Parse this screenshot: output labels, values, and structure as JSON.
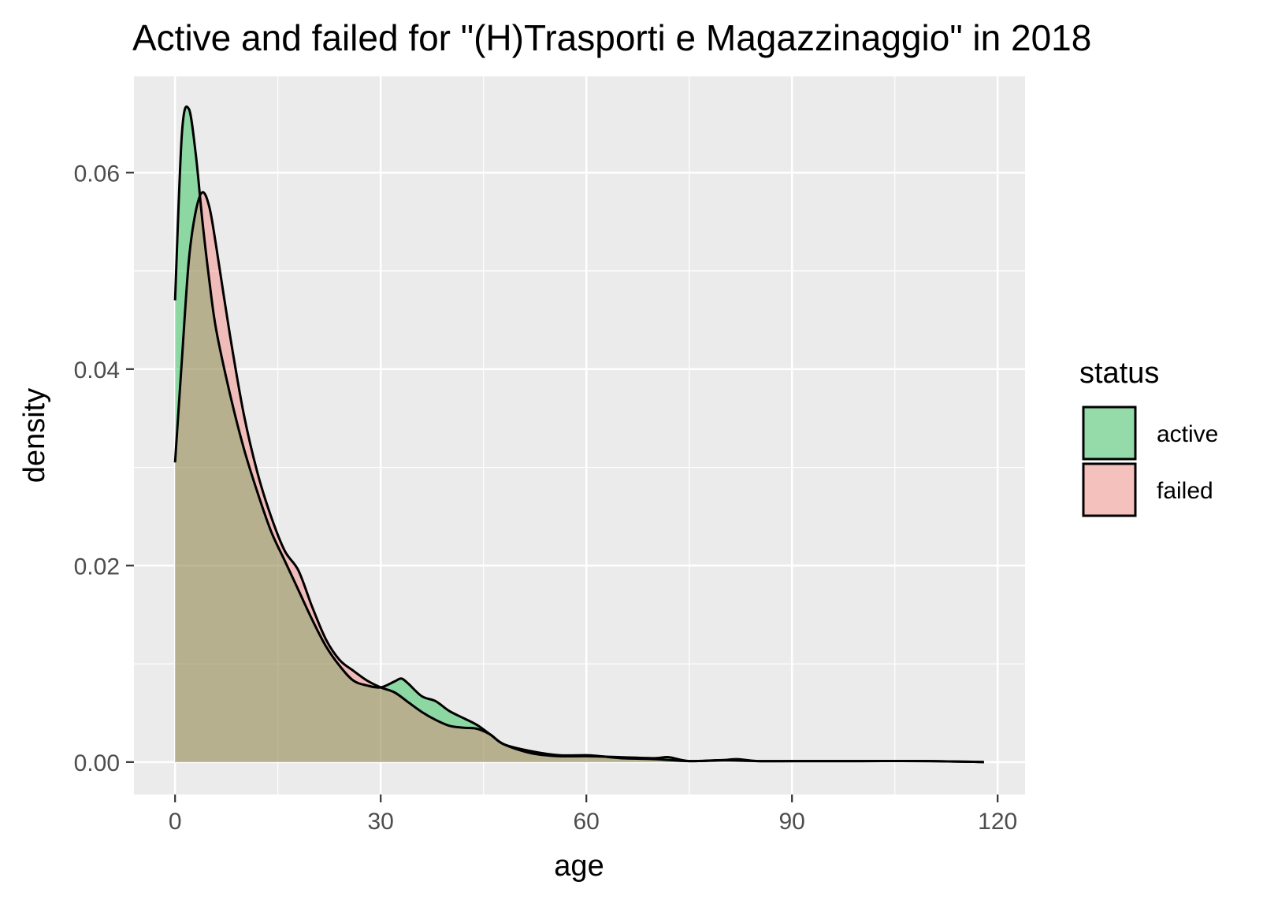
{
  "chart_data": {
    "type": "area",
    "title": "Active and failed for \"(H)Trasporti e Magazzinaggio\" in 2018",
    "xlabel": "age",
    "ylabel": "density",
    "xlim": [
      -6,
      124
    ],
    "ylim": [
      -0.0033,
      0.0698
    ],
    "x_ticks": [
      0,
      30,
      60,
      90,
      120
    ],
    "x_tick_labels": [
      "0",
      "30",
      "60",
      "90",
      "120"
    ],
    "y_ticks": [
      0.0,
      0.02,
      0.04,
      0.06
    ],
    "y_tick_labels": [
      "0.00",
      "0.02",
      "0.04",
      "0.06"
    ],
    "grid": true,
    "legend": {
      "title": "status",
      "position": "right",
      "items": [
        {
          "label": "active",
          "color": "#95dba9"
        },
        {
          "label": "failed",
          "color": "#f5c1bd"
        }
      ]
    },
    "colors": {
      "panel_bg": "#ebebeb",
      "grid": "#ffffff",
      "active_fill": "#00ba38",
      "failed_fill": "#f8766d",
      "fill_opacity": 0.4,
      "outline": "#000000"
    },
    "series": [
      {
        "name": "active",
        "x": [
          0,
          1,
          2,
          3,
          4,
          5,
          6,
          8,
          10,
          12,
          14,
          16,
          18,
          20,
          22,
          24,
          26,
          28,
          30,
          32,
          33,
          34,
          36,
          38,
          40,
          42,
          44,
          46,
          48,
          52,
          56,
          60,
          65,
          70,
          72,
          75,
          80,
          85,
          90,
          100,
          110,
          118
        ],
        "y": [
          0.047,
          0.064,
          0.0665,
          0.062,
          0.055,
          0.049,
          0.044,
          0.0375,
          0.032,
          0.0275,
          0.0235,
          0.0205,
          0.0175,
          0.0145,
          0.0118,
          0.0098,
          0.0083,
          0.0078,
          0.0076,
          0.0082,
          0.0085,
          0.008,
          0.0067,
          0.0062,
          0.0052,
          0.0045,
          0.0038,
          0.0028,
          0.0018,
          0.0009,
          0.0006,
          0.0006,
          0.0005,
          0.0004,
          0.0005,
          0.0001,
          0.0002,
          0.0001,
          0.0001,
          0.0001,
          0.0001,
          0.0
        ]
      },
      {
        "name": "failed",
        "x": [
          0,
          1,
          2,
          3,
          4,
          5,
          6,
          8,
          10,
          12,
          14,
          16,
          18,
          20,
          22,
          24,
          26,
          28,
          30,
          32,
          34,
          36,
          38,
          40,
          42,
          44,
          46,
          48,
          52,
          56,
          60,
          62,
          65,
          70,
          75,
          80,
          82,
          85,
          90,
          100,
          110,
          118
        ],
        "y": [
          0.0305,
          0.041,
          0.051,
          0.056,
          0.058,
          0.0565,
          0.0525,
          0.0435,
          0.0355,
          0.0295,
          0.025,
          0.0215,
          0.0195,
          0.0158,
          0.0125,
          0.0104,
          0.0093,
          0.0083,
          0.0076,
          0.0071,
          0.0061,
          0.0051,
          0.0043,
          0.0037,
          0.0035,
          0.0034,
          0.0028,
          0.0018,
          0.0011,
          0.0007,
          0.0007,
          0.0006,
          0.0004,
          0.0003,
          0.0001,
          0.0002,
          0.0003,
          0.0001,
          0.0001,
          0.0001,
          0.0001,
          0.0
        ]
      }
    ]
  }
}
